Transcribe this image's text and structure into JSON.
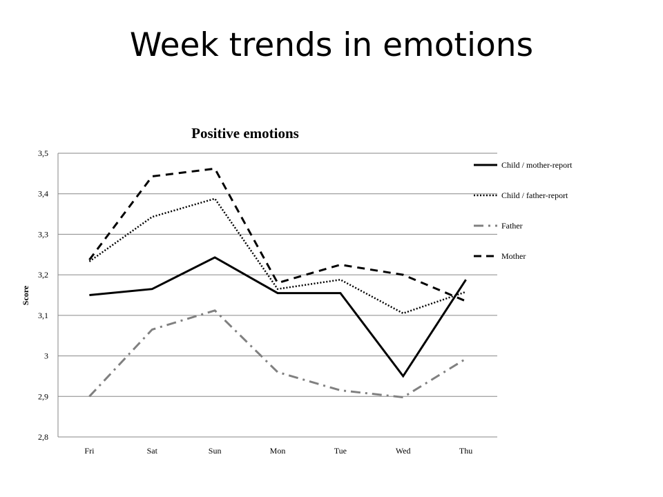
{
  "slide": {
    "title": "Week trends in emotions"
  },
  "chart_data": {
    "type": "line",
    "title": "Positive emotions",
    "xlabel": "",
    "ylabel": "Score",
    "categories": [
      "Fri",
      "Sat",
      "Sun",
      "Mon",
      "Tue",
      "Wed",
      "Thu"
    ],
    "ylim": [
      2.8,
      3.5
    ],
    "yticks": [
      2.8,
      2.9,
      3.0,
      3.1,
      3.2,
      3.3,
      3.4,
      3.5
    ],
    "ytick_labels": [
      "2,8",
      "2,9",
      "3",
      "3,1",
      "3,2",
      "3,3",
      "3,4",
      "3,5"
    ],
    "grid": "horizontal",
    "legend_position": "right",
    "series": [
      {
        "name": "Child / mother-report",
        "values": [
          3.15,
          3.165,
          3.243,
          3.155,
          3.155,
          2.95,
          3.188
        ],
        "color": "#000000",
        "style": "solid"
      },
      {
        "name": "Child / father-report",
        "values": [
          3.233,
          3.343,
          3.388,
          3.165,
          3.188,
          3.105,
          3.158
        ],
        "color": "#000000",
        "style": "dotted"
      },
      {
        "name": "Father",
        "values": [
          2.9,
          3.065,
          3.112,
          2.96,
          2.915,
          2.898,
          2.993
        ],
        "color": "#808080",
        "style": "dashdot"
      },
      {
        "name": "Mother",
        "values": [
          3.237,
          3.443,
          3.462,
          3.18,
          3.225,
          3.2,
          3.135
        ],
        "color": "#000000",
        "style": "dashed"
      }
    ]
  }
}
